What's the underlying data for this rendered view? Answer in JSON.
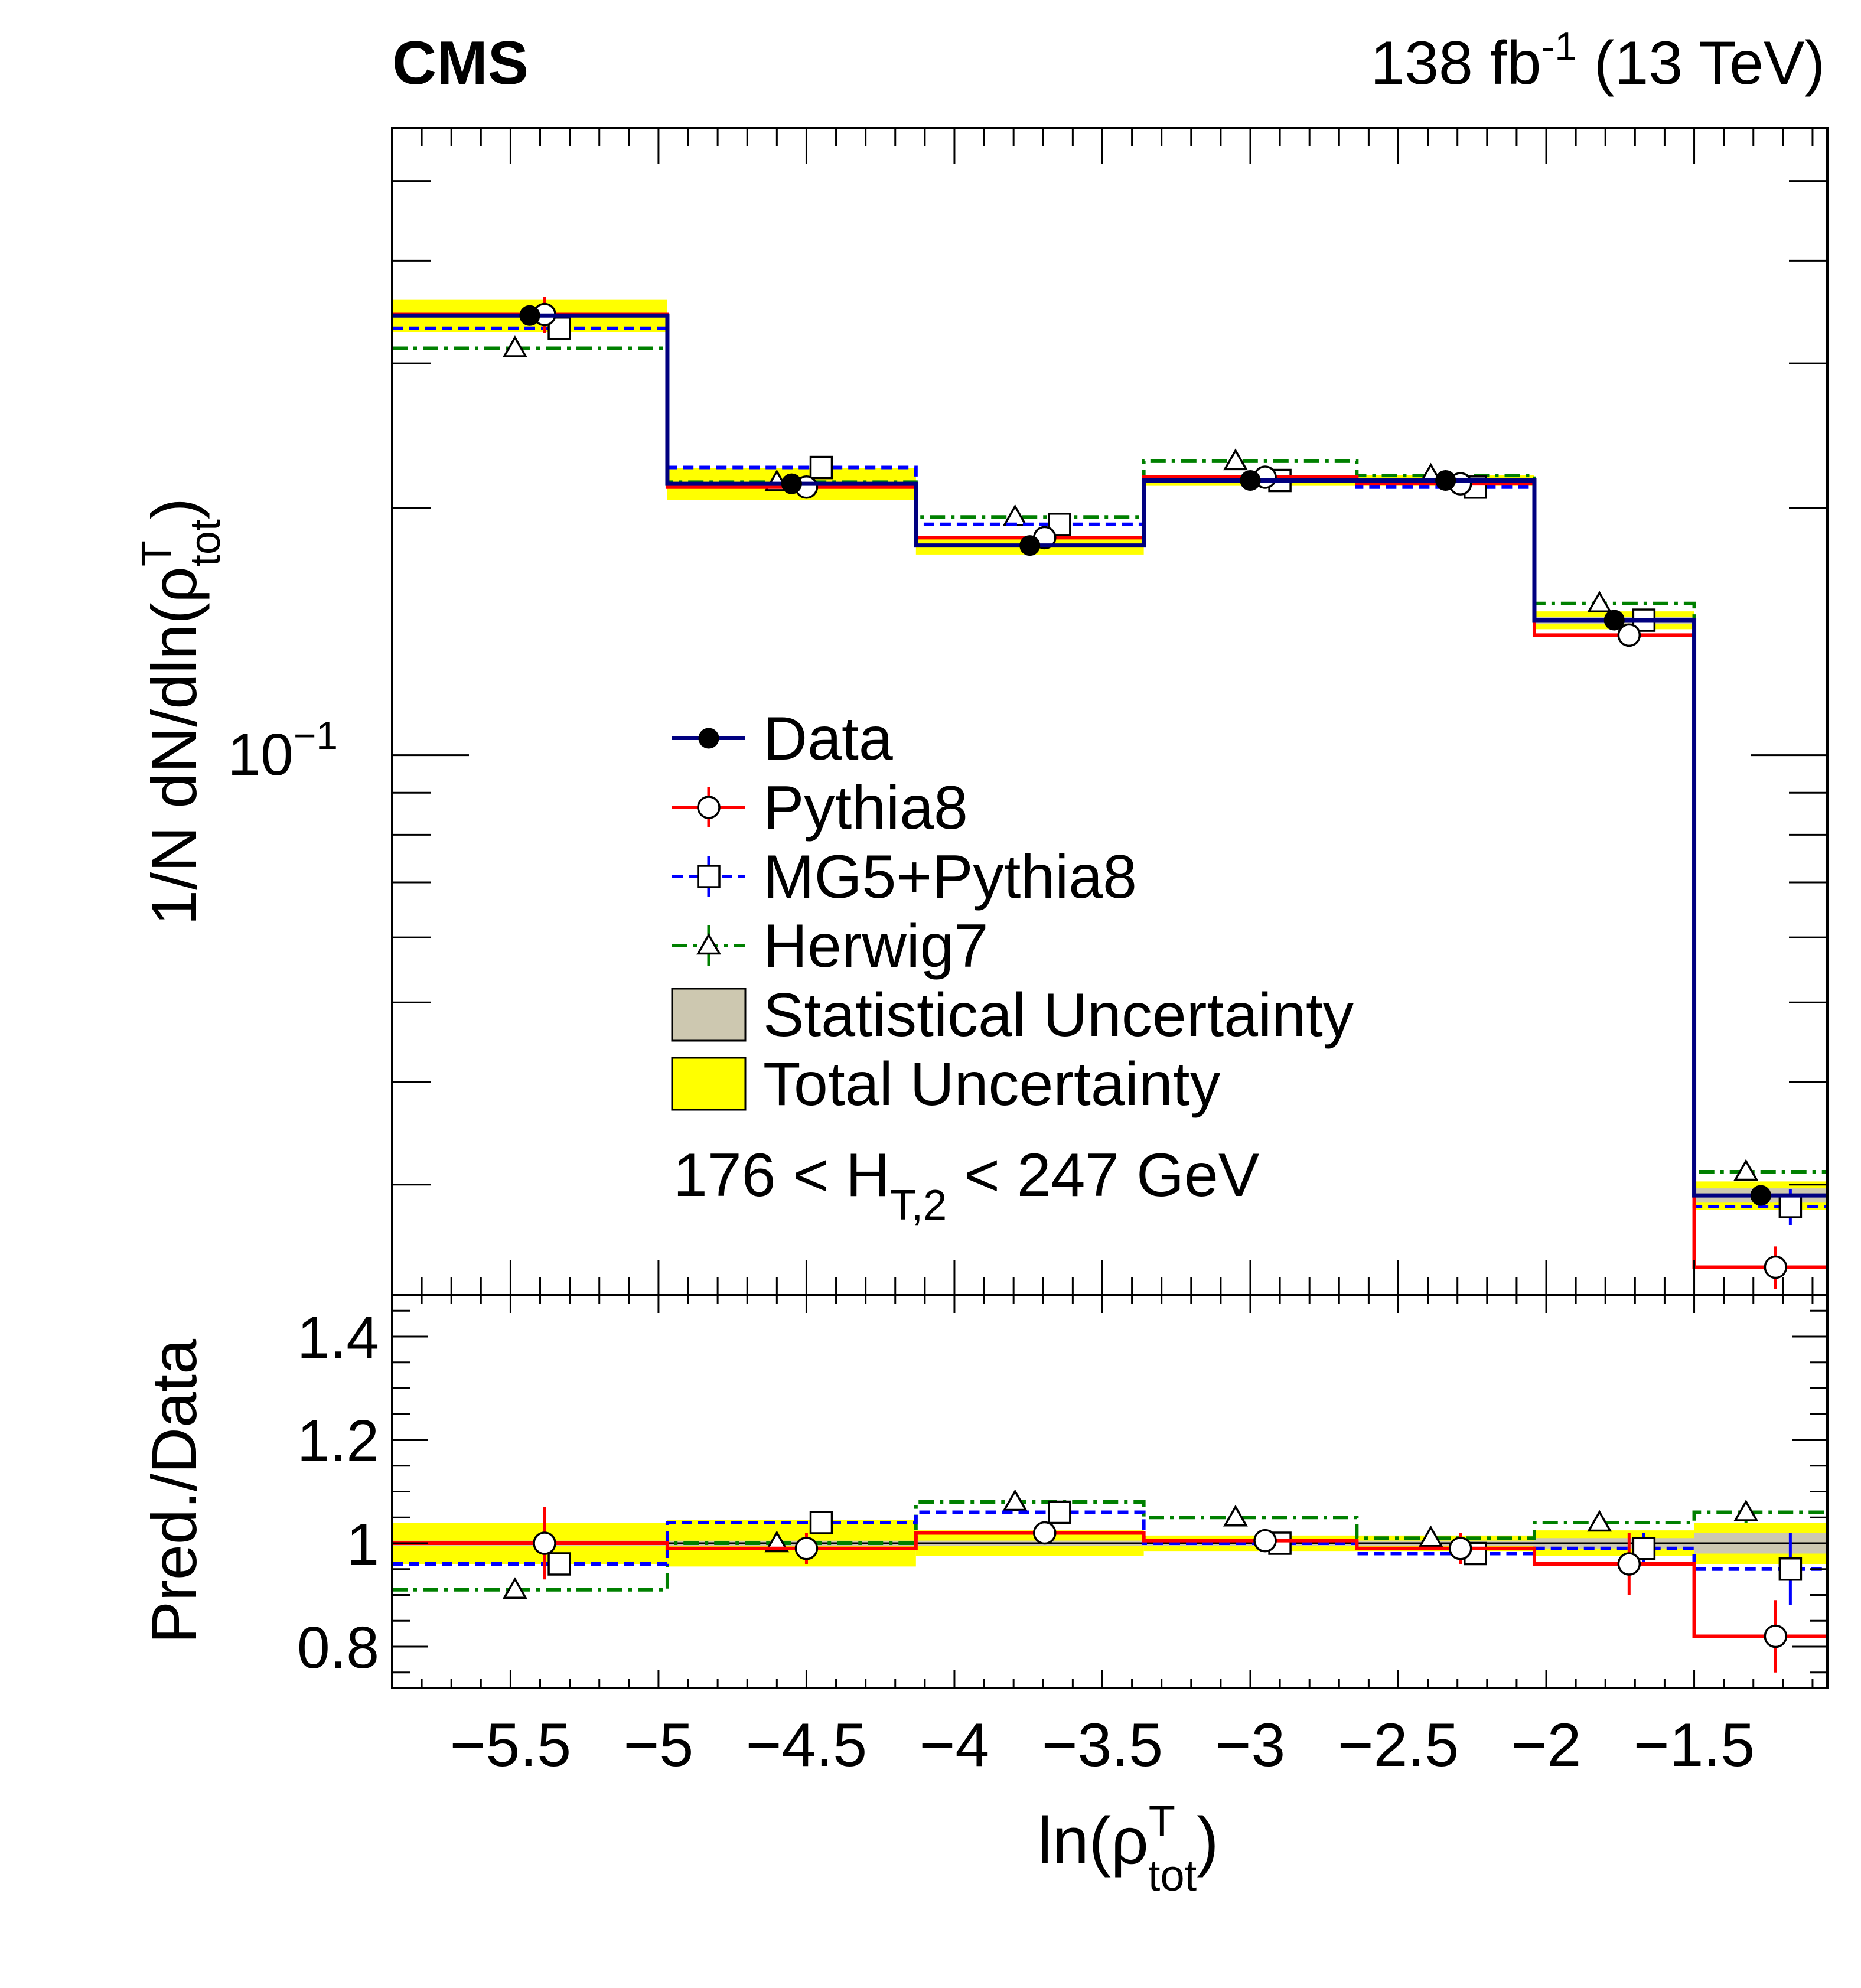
{
  "header": {
    "experiment": "CMS",
    "lumi_value": "138 fb",
    "lumi_exp": "-1",
    "energy": "(13 TeV)"
  },
  "selection": {
    "prefix": "176 < H",
    "subscript": "T,2",
    "suffix": " < 247 GeV"
  },
  "axes": {
    "ylabel_top_prefix": "1/N dN/dln(ρ",
    "ylabel_top_sup": "T",
    "ylabel_top_sub": "tot",
    "ylabel_top_suffix": ")",
    "ylabel_bottom": "Pred./Data",
    "xlabel_prefix": "ln(ρ",
    "xlabel_sup": "T",
    "xlabel_sub": "tot",
    "xlabel_suffix": ")",
    "top_ytick": {
      "mantissa": "10",
      "exponent": "−1"
    },
    "bottom_yticks": [
      "0.8",
      "1",
      "1.2",
      "1.4"
    ],
    "xticks": [
      "−5.5",
      "−5",
      "−4.5",
      "−4",
      "−3.5",
      "−3",
      "−2.5",
      "−2",
      "−1.5"
    ]
  },
  "legend": {
    "position": "center",
    "entries": [
      {
        "label": "Data",
        "marker": "filled-circle",
        "color": "#000080"
      },
      {
        "label": "Pythia8",
        "marker": "open-circle",
        "color": "#ff0000"
      },
      {
        "label": "MG5+Pythia8",
        "marker": "open-square",
        "color": "#0000ff"
      },
      {
        "label": "Herwig7",
        "marker": "open-triangle",
        "color": "#008000"
      },
      {
        "label": "Statistical Uncertainty",
        "marker": "box",
        "color": "#cdc8b0"
      },
      {
        "label": "Total Uncertainty",
        "marker": "box",
        "color": "#ffff00"
      }
    ]
  },
  "chart_data": {
    "type": "line",
    "step": true,
    "xlim": [
      -5.9,
      -1.05
    ],
    "top_panel": {
      "log_y": true,
      "ylim": [
        0.022,
        0.58
      ],
      "bin_edges": [
        -5.9,
        -4.97,
        -4.13,
        -3.36,
        -2.64,
        -2.04,
        -1.5,
        -1.05
      ],
      "series": [
        {
          "name": "Data",
          "color": "#000080",
          "values": [
            0.343,
            0.214,
            0.18,
            0.216,
            0.216,
            0.146,
            0.0291
          ],
          "stat_rel": [
            0.005,
            0.005,
            0.005,
            0.005,
            0.005,
            0.01,
            0.02
          ],
          "total_rel": [
            0.045,
            0.045,
            0.025,
            0.015,
            0.015,
            0.025,
            0.04
          ]
        },
        {
          "name": "Pythia8",
          "color": "#ff0000",
          "values": [
            0.344,
            0.212,
            0.184,
            0.218,
            0.214,
            0.14,
            0.0238
          ],
          "err_rel": [
            0.05,
            0.02,
            0.01,
            0.01,
            0.02,
            0.03,
            0.06
          ]
        },
        {
          "name": "MG5+Pythia8",
          "color": "#0000ff",
          "values": [
            0.331,
            0.224,
            0.191,
            0.216,
            0.212,
            0.146,
            0.0282
          ],
          "err_rel": [
            0.01,
            0.01,
            0.01,
            0.01,
            0.01,
            0.02,
            0.05
          ]
        },
        {
          "name": "Herwig7",
          "color": "#008000",
          "values": [
            0.313,
            0.215,
            0.195,
            0.228,
            0.219,
            0.153,
            0.0311
          ],
          "err_rel": [
            0.01,
            0.01,
            0.01,
            0.01,
            0.01,
            0.01,
            0.02
          ]
        }
      ]
    },
    "ratio_panel": {
      "ylim": [
        0.72,
        1.48
      ],
      "series": [
        {
          "name": "Pythia8",
          "values": [
            1.0,
            0.99,
            1.02,
            1.005,
            0.99,
            0.96,
            0.82
          ],
          "err": [
            0.07,
            0.03,
            0.02,
            0.02,
            0.03,
            0.06,
            0.07
          ]
        },
        {
          "name": "MG5+Pythia8",
          "values": [
            0.96,
            1.04,
            1.06,
            1.0,
            0.98,
            0.99,
            0.95
          ],
          "err": [
            0.01,
            0.01,
            0.01,
            0.01,
            0.01,
            0.03,
            0.07
          ]
        },
        {
          "name": "Herwig7",
          "values": [
            0.91,
            1.0,
            1.08,
            1.05,
            1.01,
            1.04,
            1.06
          ],
          "err": [
            0.01,
            0.01,
            0.01,
            0.01,
            0.01,
            0.01,
            0.02
          ]
        }
      ],
      "stat_band": [
        0.005,
        0.005,
        0.005,
        0.005,
        0.005,
        0.01,
        0.02
      ],
      "total_band": [
        0.04,
        0.045,
        0.025,
        0.015,
        0.015,
        0.025,
        0.04
      ]
    }
  }
}
